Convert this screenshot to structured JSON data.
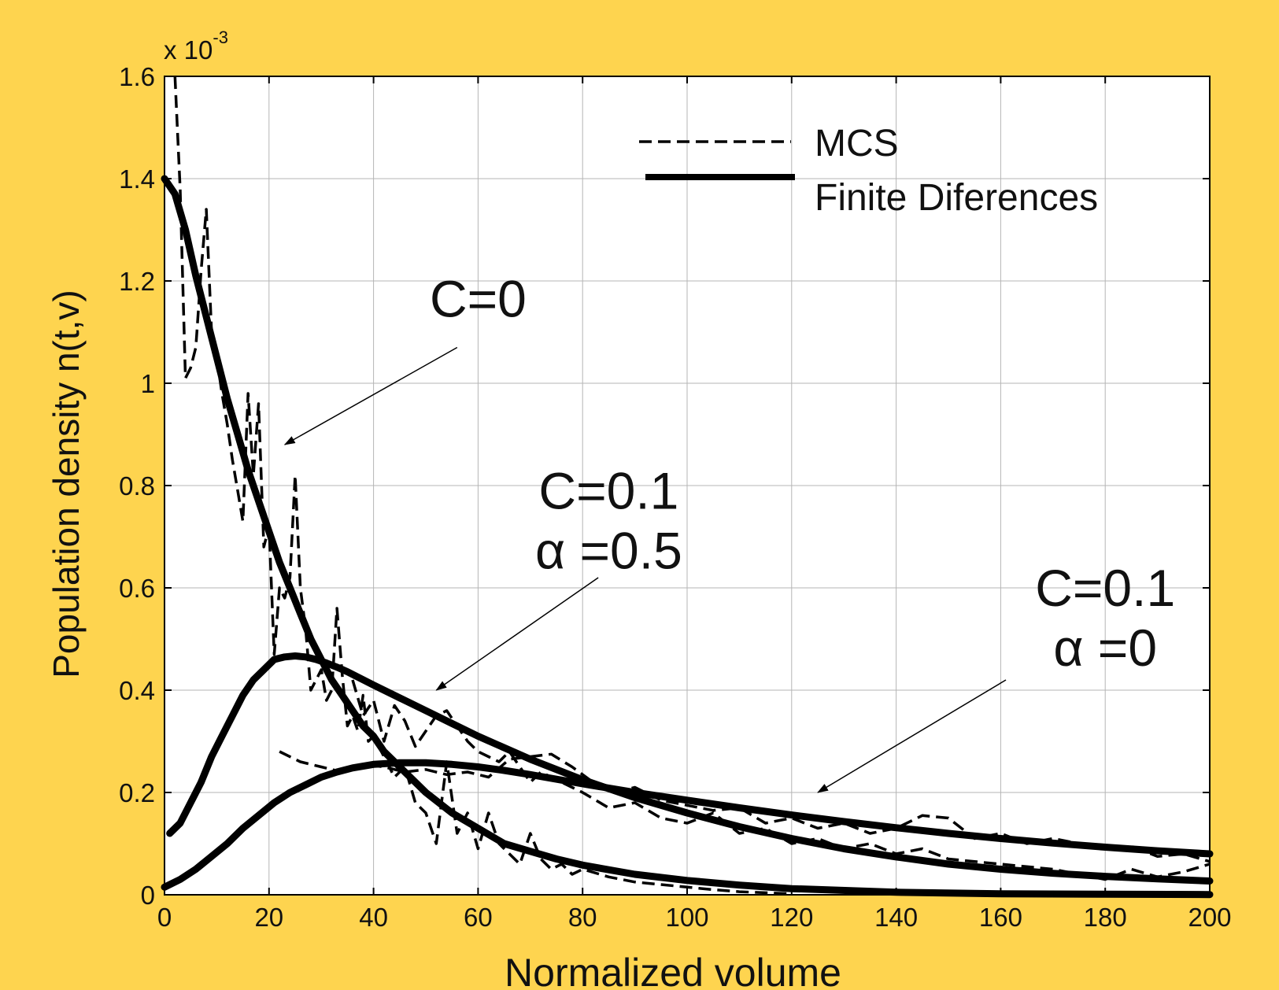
{
  "colors": {
    "background": "#FED44F",
    "plot_bg": "#FFFFFF",
    "ink": "#000000",
    "grid": "#B5B5B5"
  },
  "chart_data": {
    "type": "line",
    "title": "",
    "xlabel": "Normalized volume",
    "ylabel": "Population density n(t,v)",
    "y_multiplier": "x 10",
    "y_multiplier_exp": "-3",
    "xlim": [
      0,
      200
    ],
    "ylim": [
      0,
      1.6
    ],
    "x_ticks": [
      0,
      20,
      40,
      60,
      80,
      100,
      120,
      140,
      160,
      180,
      200
    ],
    "y_ticks": [
      0,
      0.2,
      0.4,
      0.6,
      0.8,
      1,
      1.2,
      1.4,
      1.6
    ],
    "y_tick_labels": [
      "0",
      "0.2",
      "0.4",
      "0.6",
      "0.8",
      "1",
      "1.2",
      "1.4",
      "1.6"
    ],
    "grid": true,
    "legend_position": "top-right",
    "legend": [
      {
        "label": "MCS",
        "style": "dashed"
      },
      {
        "label": "Finite Diferences",
        "style": "solid"
      }
    ],
    "annotations": [
      {
        "lines": [
          "C=0"
        ],
        "text_at": [
          60,
          1.13
        ],
        "arrow_from": [
          56,
          1.07
        ],
        "arrow_to": [
          23,
          0.88
        ]
      },
      {
        "lines": [
          "C=0.1",
          "α =0.5"
        ],
        "text_at": [
          85,
          0.755
        ],
        "arrow_from": [
          83,
          0.62
        ],
        "arrow_to": [
          52,
          0.4
        ]
      },
      {
        "lines": [
          "C=0.1",
          "α =0"
        ],
        "text_at": [
          180,
          0.565
        ],
        "arrow_from": [
          161,
          0.42
        ],
        "arrow_to": [
          125,
          0.2
        ]
      }
    ],
    "series": [
      {
        "style": "solid",
        "x": [
          0,
          2,
          4,
          6,
          8,
          10,
          12,
          14,
          16,
          18,
          20,
          22,
          24,
          26,
          28,
          30,
          32,
          34,
          36,
          38,
          40,
          42,
          44,
          46,
          48,
          50,
          55,
          60,
          65,
          70,
          75,
          80,
          90,
          100,
          110,
          120,
          140,
          160,
          180,
          200
        ],
        "y": [
          1.4,
          1.37,
          1.3,
          1.21,
          1.13,
          1.05,
          0.97,
          0.9,
          0.83,
          0.77,
          0.71,
          0.65,
          0.6,
          0.55,
          0.5,
          0.46,
          0.42,
          0.39,
          0.36,
          0.33,
          0.31,
          0.28,
          0.26,
          0.24,
          0.22,
          0.2,
          0.16,
          0.13,
          0.1,
          0.085,
          0.07,
          0.058,
          0.04,
          0.028,
          0.019,
          0.012,
          0.005,
          0.002,
          0.001,
          0.0005
        ]
      },
      {
        "style": "solid",
        "x": [
          1,
          3,
          5,
          7,
          9,
          11,
          13,
          15,
          17,
          19,
          21,
          23,
          25,
          27,
          29,
          31,
          33,
          35,
          40,
          45,
          50,
          55,
          60,
          70,
          80,
          90,
          100,
          110,
          120,
          130,
          140,
          150,
          160,
          170,
          180,
          190,
          200
        ],
        "y": [
          0.12,
          0.14,
          0.18,
          0.22,
          0.27,
          0.31,
          0.35,
          0.39,
          0.42,
          0.44,
          0.46,
          0.465,
          0.467,
          0.465,
          0.46,
          0.453,
          0.445,
          0.436,
          0.41,
          0.385,
          0.36,
          0.335,
          0.31,
          0.265,
          0.225,
          0.19,
          0.16,
          0.133,
          0.11,
          0.09,
          0.074,
          0.06,
          0.05,
          0.042,
          0.036,
          0.031,
          0.027
        ]
      },
      {
        "style": "solid",
        "x": [
          0,
          3,
          6,
          9,
          12,
          15,
          18,
          21,
          24,
          27,
          30,
          33,
          36,
          40,
          45,
          50,
          55,
          60,
          65,
          70,
          80,
          90,
          100,
          110,
          120,
          130,
          140,
          150,
          160,
          170,
          180,
          190,
          200
        ],
        "y": [
          0.015,
          0.03,
          0.05,
          0.075,
          0.1,
          0.13,
          0.155,
          0.18,
          0.2,
          0.215,
          0.23,
          0.24,
          0.248,
          0.255,
          0.258,
          0.258,
          0.255,
          0.25,
          0.243,
          0.235,
          0.217,
          0.2,
          0.185,
          0.17,
          0.156,
          0.143,
          0.131,
          0.12,
          0.11,
          0.101,
          0.093,
          0.086,
          0.08
        ]
      },
      {
        "style": "dashed",
        "x": [
          2,
          3,
          4,
          5,
          6,
          7,
          8,
          9,
          10,
          11,
          12,
          13,
          14,
          15,
          16,
          17,
          18,
          19,
          20,
          21,
          22,
          23,
          24,
          25,
          26,
          27,
          28,
          29,
          30,
          31,
          32,
          33,
          34,
          35,
          36,
          37,
          38,
          39,
          40,
          42,
          44,
          46,
          48,
          50,
          52,
          54,
          56,
          58,
          60,
          62,
          64,
          66,
          68,
          70,
          72,
          74,
          76,
          78,
          80,
          85,
          90,
          95,
          100,
          105,
          110,
          115,
          120
        ],
        "y": [
          1.6,
          1.38,
          1.01,
          1.03,
          1.07,
          1.22,
          1.34,
          1.1,
          1.05,
          0.98,
          0.92,
          0.85,
          0.79,
          0.73,
          0.98,
          0.82,
          0.96,
          0.68,
          0.72,
          0.47,
          0.6,
          0.58,
          0.62,
          0.82,
          0.6,
          0.52,
          0.4,
          0.42,
          0.44,
          0.38,
          0.4,
          0.56,
          0.43,
          0.33,
          0.35,
          0.32,
          0.39,
          0.3,
          0.31,
          0.27,
          0.23,
          0.25,
          0.18,
          0.16,
          0.1,
          0.26,
          0.12,
          0.16,
          0.09,
          0.16,
          0.1,
          0.08,
          0.06,
          0.12,
          0.07,
          0.05,
          0.06,
          0.04,
          0.05,
          0.035,
          0.025,
          0.02,
          0.015,
          0.01,
          0.006,
          0.004,
          0.002
        ]
      },
      {
        "style": "dashed",
        "x": [
          36,
          38,
          40,
          42,
          44,
          46,
          48,
          50,
          52,
          54,
          56,
          58,
          60,
          62,
          64,
          66,
          68,
          70,
          72,
          74,
          76,
          78,
          80,
          85,
          90,
          95,
          100,
          105,
          110,
          115,
          120,
          125,
          130,
          135,
          140,
          145,
          150,
          155,
          160,
          165,
          170,
          175,
          180,
          185,
          190,
          195,
          200
        ],
        "y": [
          0.42,
          0.35,
          0.38,
          0.3,
          0.37,
          0.34,
          0.29,
          0.32,
          0.35,
          0.36,
          0.33,
          0.3,
          0.28,
          0.27,
          0.26,
          0.28,
          0.25,
          0.22,
          0.24,
          0.23,
          0.22,
          0.21,
          0.2,
          0.17,
          0.18,
          0.15,
          0.14,
          0.16,
          0.12,
          0.13,
          0.1,
          0.11,
          0.09,
          0.1,
          0.08,
          0.09,
          0.07,
          0.065,
          0.06,
          0.055,
          0.05,
          0.04,
          0.03,
          0.05,
          0.035,
          0.045,
          0.06
        ]
      },
      {
        "style": "dashed",
        "x": [
          22,
          26,
          30,
          34,
          38,
          42,
          46,
          50,
          54,
          58,
          62,
          66,
          70,
          74,
          78,
          82,
          86,
          90,
          95,
          100,
          105,
          110,
          115,
          120,
          125,
          130,
          135,
          140,
          145,
          150,
          155,
          160,
          165,
          170,
          175,
          180,
          185,
          190,
          195,
          200
        ],
        "y": [
          0.28,
          0.26,
          0.25,
          0.24,
          0.255,
          0.25,
          0.24,
          0.245,
          0.235,
          0.24,
          0.23,
          0.265,
          0.27,
          0.275,
          0.25,
          0.22,
          0.2,
          0.21,
          0.185,
          0.175,
          0.165,
          0.17,
          0.14,
          0.15,
          0.13,
          0.14,
          0.12,
          0.13,
          0.155,
          0.15,
          0.11,
          0.12,
          0.1,
          0.11,
          0.1,
          0.09,
          0.095,
          0.075,
          0.08,
          0.065
        ]
      }
    ]
  }
}
